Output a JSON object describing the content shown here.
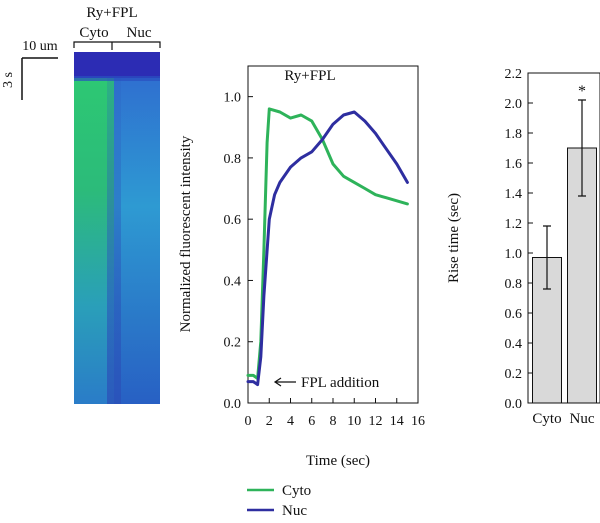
{
  "figure": {
    "kymograph": {
      "title": "Ry+FPL",
      "region_labels": [
        "Cyto",
        "Nuc"
      ],
      "scalebar_x_label": "10 um",
      "scalebar_t_label": "3 s",
      "colors": {
        "baseline": "#2c2cb4",
        "cyto_peak": "#2dc873",
        "nuc_peak": "#2f8fd0",
        "late": "#2a68c8"
      }
    }
  },
  "chart_data": [
    {
      "type": "line",
      "title": "Ry+FPL",
      "xlabel": "Time (sec)",
      "ylabel": "Normalized fluorescent intensity",
      "xlim": [
        0,
        16
      ],
      "ylim": [
        0,
        1.1
      ],
      "xticks": [
        "0",
        "2",
        "4",
        "6",
        "8",
        "10",
        "12",
        "14",
        "16"
      ],
      "yticks": [
        "0.0",
        "0.2",
        "0.4",
        "0.6",
        "0.8",
        "1.0"
      ],
      "annotation": "FPL addition",
      "annotation_at": {
        "x": 0.8,
        "y": 0.07
      },
      "legend_position": "bottom-left",
      "series": [
        {
          "name": "Cyto",
          "color": "#2eb35a",
          "x": [
            0,
            0.5,
            0.9,
            1.2,
            1.5,
            1.8,
            2.0,
            3.0,
            4.0,
            5.0,
            6.0,
            7.0,
            8.0,
            9.0,
            10.0,
            11.0,
            12.0,
            13.0,
            14.0,
            15.0
          ],
          "y": [
            0.09,
            0.09,
            0.08,
            0.2,
            0.5,
            0.85,
            0.96,
            0.95,
            0.93,
            0.94,
            0.92,
            0.86,
            0.78,
            0.74,
            0.72,
            0.7,
            0.68,
            0.67,
            0.66,
            0.65
          ]
        },
        {
          "name": "Nuc",
          "color": "#2e2ea0",
          "x": [
            0,
            0.5,
            0.9,
            1.2,
            1.5,
            2.0,
            2.5,
            3.0,
            4.0,
            5.0,
            6.0,
            7.0,
            8.0,
            9.0,
            10.0,
            11.0,
            12.0,
            13.0,
            14.0,
            15.0
          ],
          "y": [
            0.07,
            0.07,
            0.06,
            0.15,
            0.35,
            0.6,
            0.68,
            0.72,
            0.77,
            0.8,
            0.82,
            0.86,
            0.91,
            0.94,
            0.95,
            0.92,
            0.88,
            0.83,
            0.78,
            0.72
          ]
        }
      ]
    },
    {
      "type": "bar",
      "xlabel": "",
      "ylabel": "Rise time (sec)",
      "ylim": [
        0,
        2.2
      ],
      "yticks": [
        "0.0",
        "0.2",
        "0.4",
        "0.6",
        "0.8",
        "1.0",
        "1.2",
        "1.4",
        "1.6",
        "1.8",
        "2.0",
        "2.2"
      ],
      "categories": [
        "Cyto",
        "Nuc"
      ],
      "values": [
        0.97,
        1.7
      ],
      "error": [
        0.21,
        0.32
      ],
      "significance": [
        "",
        "*"
      ],
      "bar_color": "#d9d9d9"
    }
  ]
}
